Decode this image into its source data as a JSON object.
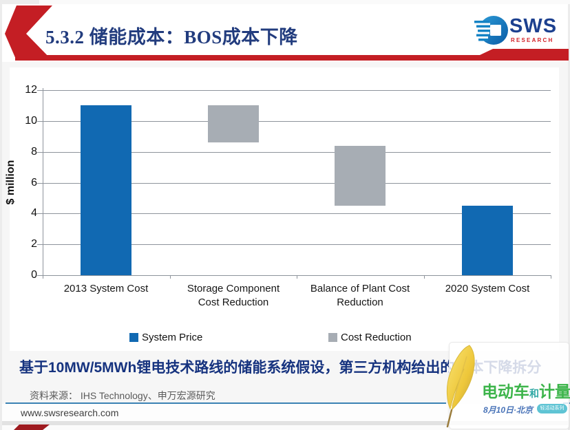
{
  "header": {
    "title": "5.3.2 储能成本：BOS成本下降",
    "logo_text": "SWS",
    "logo_subtext": "RESEARCH"
  },
  "chart_data": {
    "type": "bar",
    "subtype": "waterfall",
    "ylabel": "$ million",
    "ylim": [
      0,
      12
    ],
    "yticks": [
      0,
      2,
      4,
      6,
      8,
      10,
      12
    ],
    "grid": true,
    "legend_position": "bottom",
    "categories": [
      "2013 System Cost",
      "Storage Component Cost Reduction",
      "Balance of Plant Cost Reduction",
      "2020 System Cost"
    ],
    "bars": [
      {
        "category": "2013 System Cost",
        "from": 0,
        "to": 11.0,
        "series": "System Price"
      },
      {
        "category": "Storage Component Cost Reduction",
        "from": 8.6,
        "to": 11.0,
        "series": "Cost Reduction"
      },
      {
        "category": "Balance of Plant Cost Reduction",
        "from": 4.5,
        "to": 8.4,
        "series": "Cost Reduction"
      },
      {
        "category": "2020 System Cost",
        "from": 0,
        "to": 4.5,
        "series": "System Price"
      }
    ],
    "series_colors": {
      "System Price": "#1169b2",
      "Cost Reduction": "#a7adb4"
    },
    "legend": [
      "System Price",
      "Cost Reduction"
    ]
  },
  "highlight": {
    "bold_text": "基于10MW/5MWh锂电技术路线的储能系统假设，第三方机构给出",
    "faint_text": "的成本下降拆分"
  },
  "source": {
    "text": "资料来源：  IHS Technology、申万宏源研究"
  },
  "footer": {
    "url": "www.swsresearch.com"
  },
  "watermark": {
    "brand_left": "电动车",
    "brand_mid": "和",
    "brand_right": "计量",
    "date": "8月10日·北京",
    "badge": "轻活动系列"
  },
  "colors": {
    "accent_red": "#c41e24",
    "dark_red": "#9e1b20",
    "title_navy": "#223c7e",
    "bar_blue": "#1169b2",
    "bar_gray": "#a7adb4",
    "divider_blue": "#3b82b4",
    "watermark_green": "#3cb44a"
  }
}
